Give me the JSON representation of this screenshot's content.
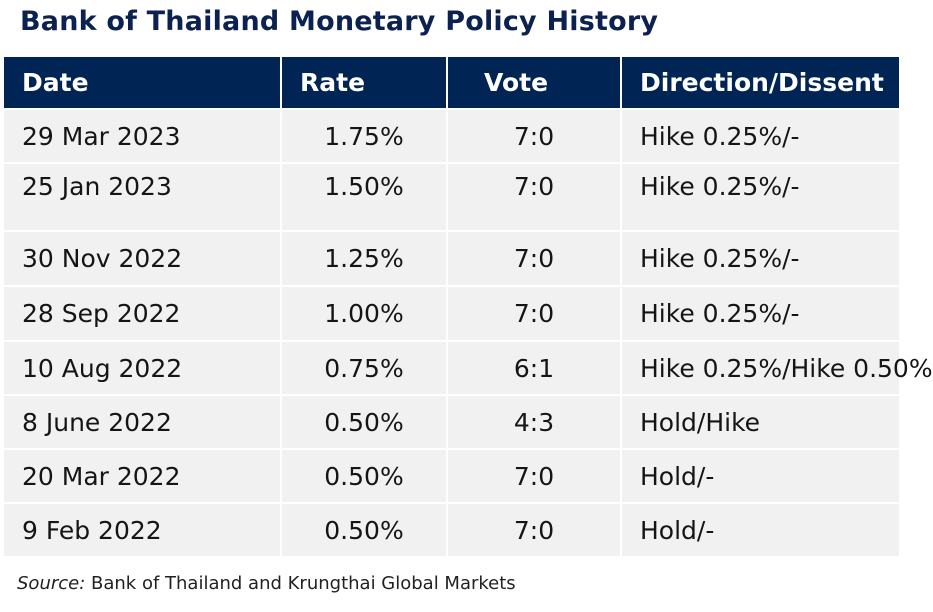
{
  "title": "Bank of Thailand Monetary Policy History",
  "table": {
    "headers": {
      "date": "Date",
      "rate": "Rate",
      "vote": "Vote",
      "direction": "Direction/Dissent"
    },
    "rows": [
      {
        "date": "29 Mar 2023",
        "rate": "1.75%",
        "vote": "7:0",
        "direction": "Hike 0.25%/-"
      },
      {
        "date": "25 Jan 2023",
        "rate": "1.50%",
        "vote": "7:0",
        "direction": "Hike 0.25%/-"
      },
      {
        "date": "30 Nov 2022",
        "rate": "1.25%",
        "vote": "7:0",
        "direction": "Hike 0.25%/-"
      },
      {
        "date": "28 Sep 2022",
        "rate": "1.00%",
        "vote": "7:0",
        "direction": "Hike 0.25%/-"
      },
      {
        "date": "10 Aug 2022",
        "rate": "0.75%",
        "vote": "6:1",
        "direction": "Hike 0.25%/Hike 0.50%"
      },
      {
        "date": "8 June 2022",
        "rate": "0.50%",
        "vote": "4:3",
        "direction": "Hold/Hike"
      },
      {
        "date": "20 Mar 2022",
        "rate": "0.50%",
        "vote": "7:0",
        "direction": "Hold/-"
      },
      {
        "date": "9 Feb 2022",
        "rate": "0.50%",
        "vote": "7:0",
        "direction": "Hold/-"
      }
    ]
  },
  "source": {
    "label": "Source:",
    "text": " Bank of Thailand and Krungthai Global Markets"
  },
  "colors": {
    "header_bg": "#002454",
    "title": "#0b2150",
    "row_bg": "#f1f1f1"
  }
}
